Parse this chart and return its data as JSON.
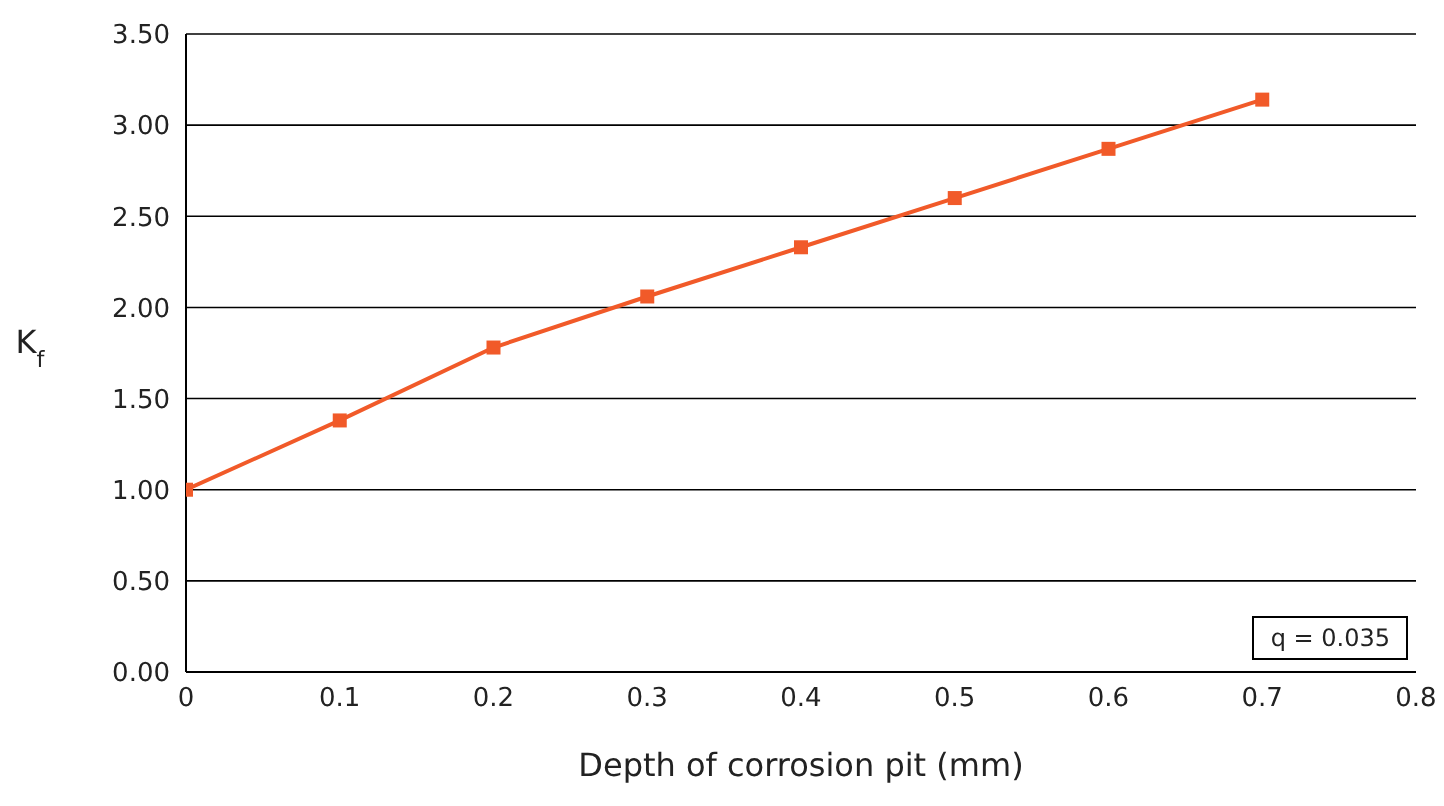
{
  "chart_data": {
    "type": "line",
    "xlabel": "Depth of corrosion pit (mm)",
    "ylabel": "K$_{f}$",
    "x": [
      0,
      0.1,
      0.2,
      0.3,
      0.4,
      0.5,
      0.6,
      0.7
    ],
    "series": [
      {
        "color": "#f15a29",
        "values": [
          1.0,
          1.38,
          1.78,
          2.06,
          2.33,
          2.6,
          2.87,
          3.14
        ]
      }
    ],
    "xlim": [
      0,
      0.8
    ],
    "xticks": [
      0,
      0.1,
      0.2,
      0.3,
      0.4,
      0.5,
      0.6,
      0.7,
      0.8
    ],
    "ylim": [
      0,
      3.5
    ],
    "yticks": [
      {
        "value": 0,
        "label": "0.00"
      },
      {
        "value": 0.5,
        "label": "0.50"
      },
      {
        "value": 1,
        "label": "1.00"
      },
      {
        "value": 1.5,
        "label": "1.50"
      },
      {
        "value": 2,
        "label": "2.00"
      },
      {
        "value": 2.5,
        "label": "2.50"
      },
      {
        "value": 3,
        "label": "3.00"
      },
      {
        "value": 3.5,
        "label": "3.50"
      }
    ],
    "grid": "y",
    "marker": "square",
    "line_style": "solid",
    "annotations": [
      "q = 0.035"
    ]
  }
}
